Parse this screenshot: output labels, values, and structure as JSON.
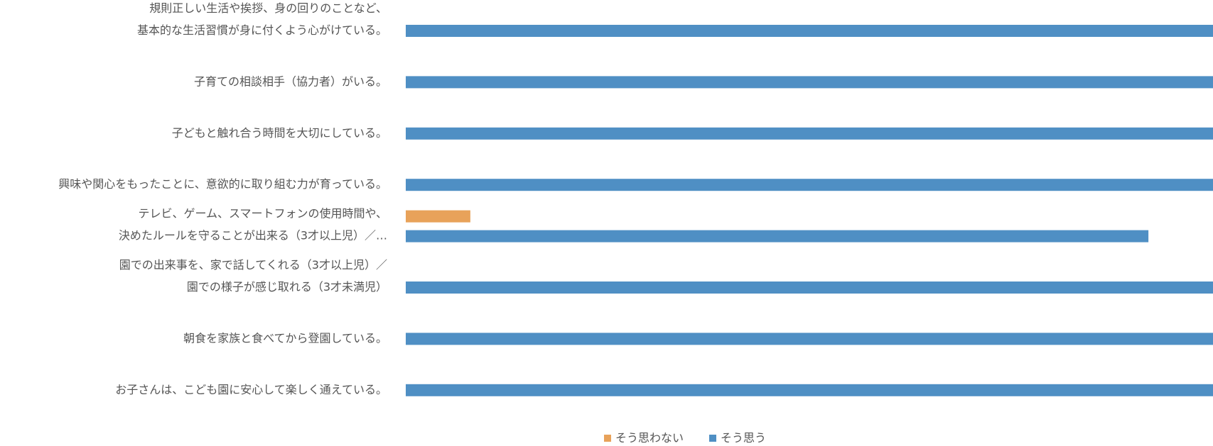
{
  "chart_data": {
    "type": "bar",
    "orientation": "horizontal",
    "categories": [
      [
        "規則正しい生活や挨拶、身の回りのことなど、",
        "基本的な生活習慣が身に付くよう心がけている。"
      ],
      [
        "子育ての相談相手（協力者）がいる。"
      ],
      [
        "子どもと触れ合う時間を大切にしている。"
      ],
      [
        "興味や関心をもったことに、意欲的に取り組む力が育っている。"
      ],
      [
        "テレビ、ゲーム、スマートフォンの使用時間や、",
        "決めたルールを守ることが出来る（3才以上児）／…"
      ],
      [
        "園での出来事を、家で話してくれる（3才以上児）／",
        "園での様子が感じ取れる（3才未満児）"
      ],
      [
        "朝食を家族と食べてから登園している。"
      ],
      [
        "お子さんは、こども園に安心して楽しく通えている。"
      ]
    ],
    "series": [
      {
        "name": "そう思わない",
        "color": "#E8A25A",
        "values": [
          0,
          0,
          0,
          0,
          8,
          0,
          0,
          0
        ]
      },
      {
        "name": "そう思う",
        "color": "#4F8FC4",
        "values": [
          100,
          100,
          100,
          100,
          92,
          100,
          100,
          100
        ]
      }
    ],
    "xlim": [
      0,
      100
    ],
    "grid": false,
    "legend_position": "bottom"
  }
}
